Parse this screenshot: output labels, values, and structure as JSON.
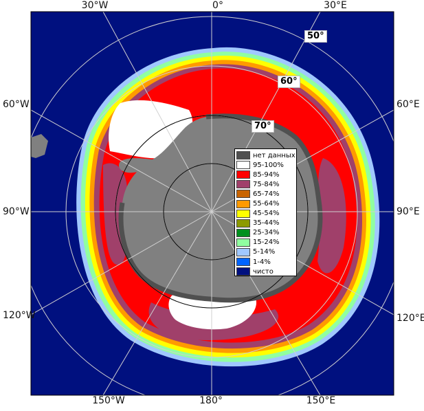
{
  "map": {
    "colors": {
      "open_water": "#00107f",
      "land": "#808080",
      "no_data": "#505050",
      "grid": "#d0d0d0"
    },
    "lon_labels_top": [
      "30°W",
      "0°",
      "30°E"
    ],
    "lon_labels_bottom": [
      "150°W",
      "180°",
      "150°E"
    ],
    "lon_labels_left": [
      "60°W",
      "90°W",
      "120°W"
    ],
    "lon_labels_right": [
      "60°E",
      "90°E",
      "120°E"
    ],
    "lat_labels": [
      "50°",
      "60°",
      "70°"
    ]
  },
  "legend": {
    "items": [
      {
        "label": "нет данных",
        "color": "#505050"
      },
      {
        "label": "95-100%",
        "color": "#ffffff"
      },
      {
        "label": "85-94%",
        "color": "#ff0000"
      },
      {
        "label": "75-84%",
        "color": "#a0406a"
      },
      {
        "label": "65-74%",
        "color": "#c86400"
      },
      {
        "label": "55-64%",
        "color": "#ff9a00"
      },
      {
        "label": "45-54%",
        "color": "#ffff00"
      },
      {
        "label": "35-44%",
        "color": "#8c9a00"
      },
      {
        "label": "25-34%",
        "color": "#00901e"
      },
      {
        "label": "15-24%",
        "color": "#90ffa0"
      },
      {
        "label": "5-14%",
        "color": "#a0c8ff"
      },
      {
        "label": "1-4%",
        "color": "#0064ff"
      },
      {
        "label": "чисто",
        "color": "#00107f"
      }
    ]
  }
}
